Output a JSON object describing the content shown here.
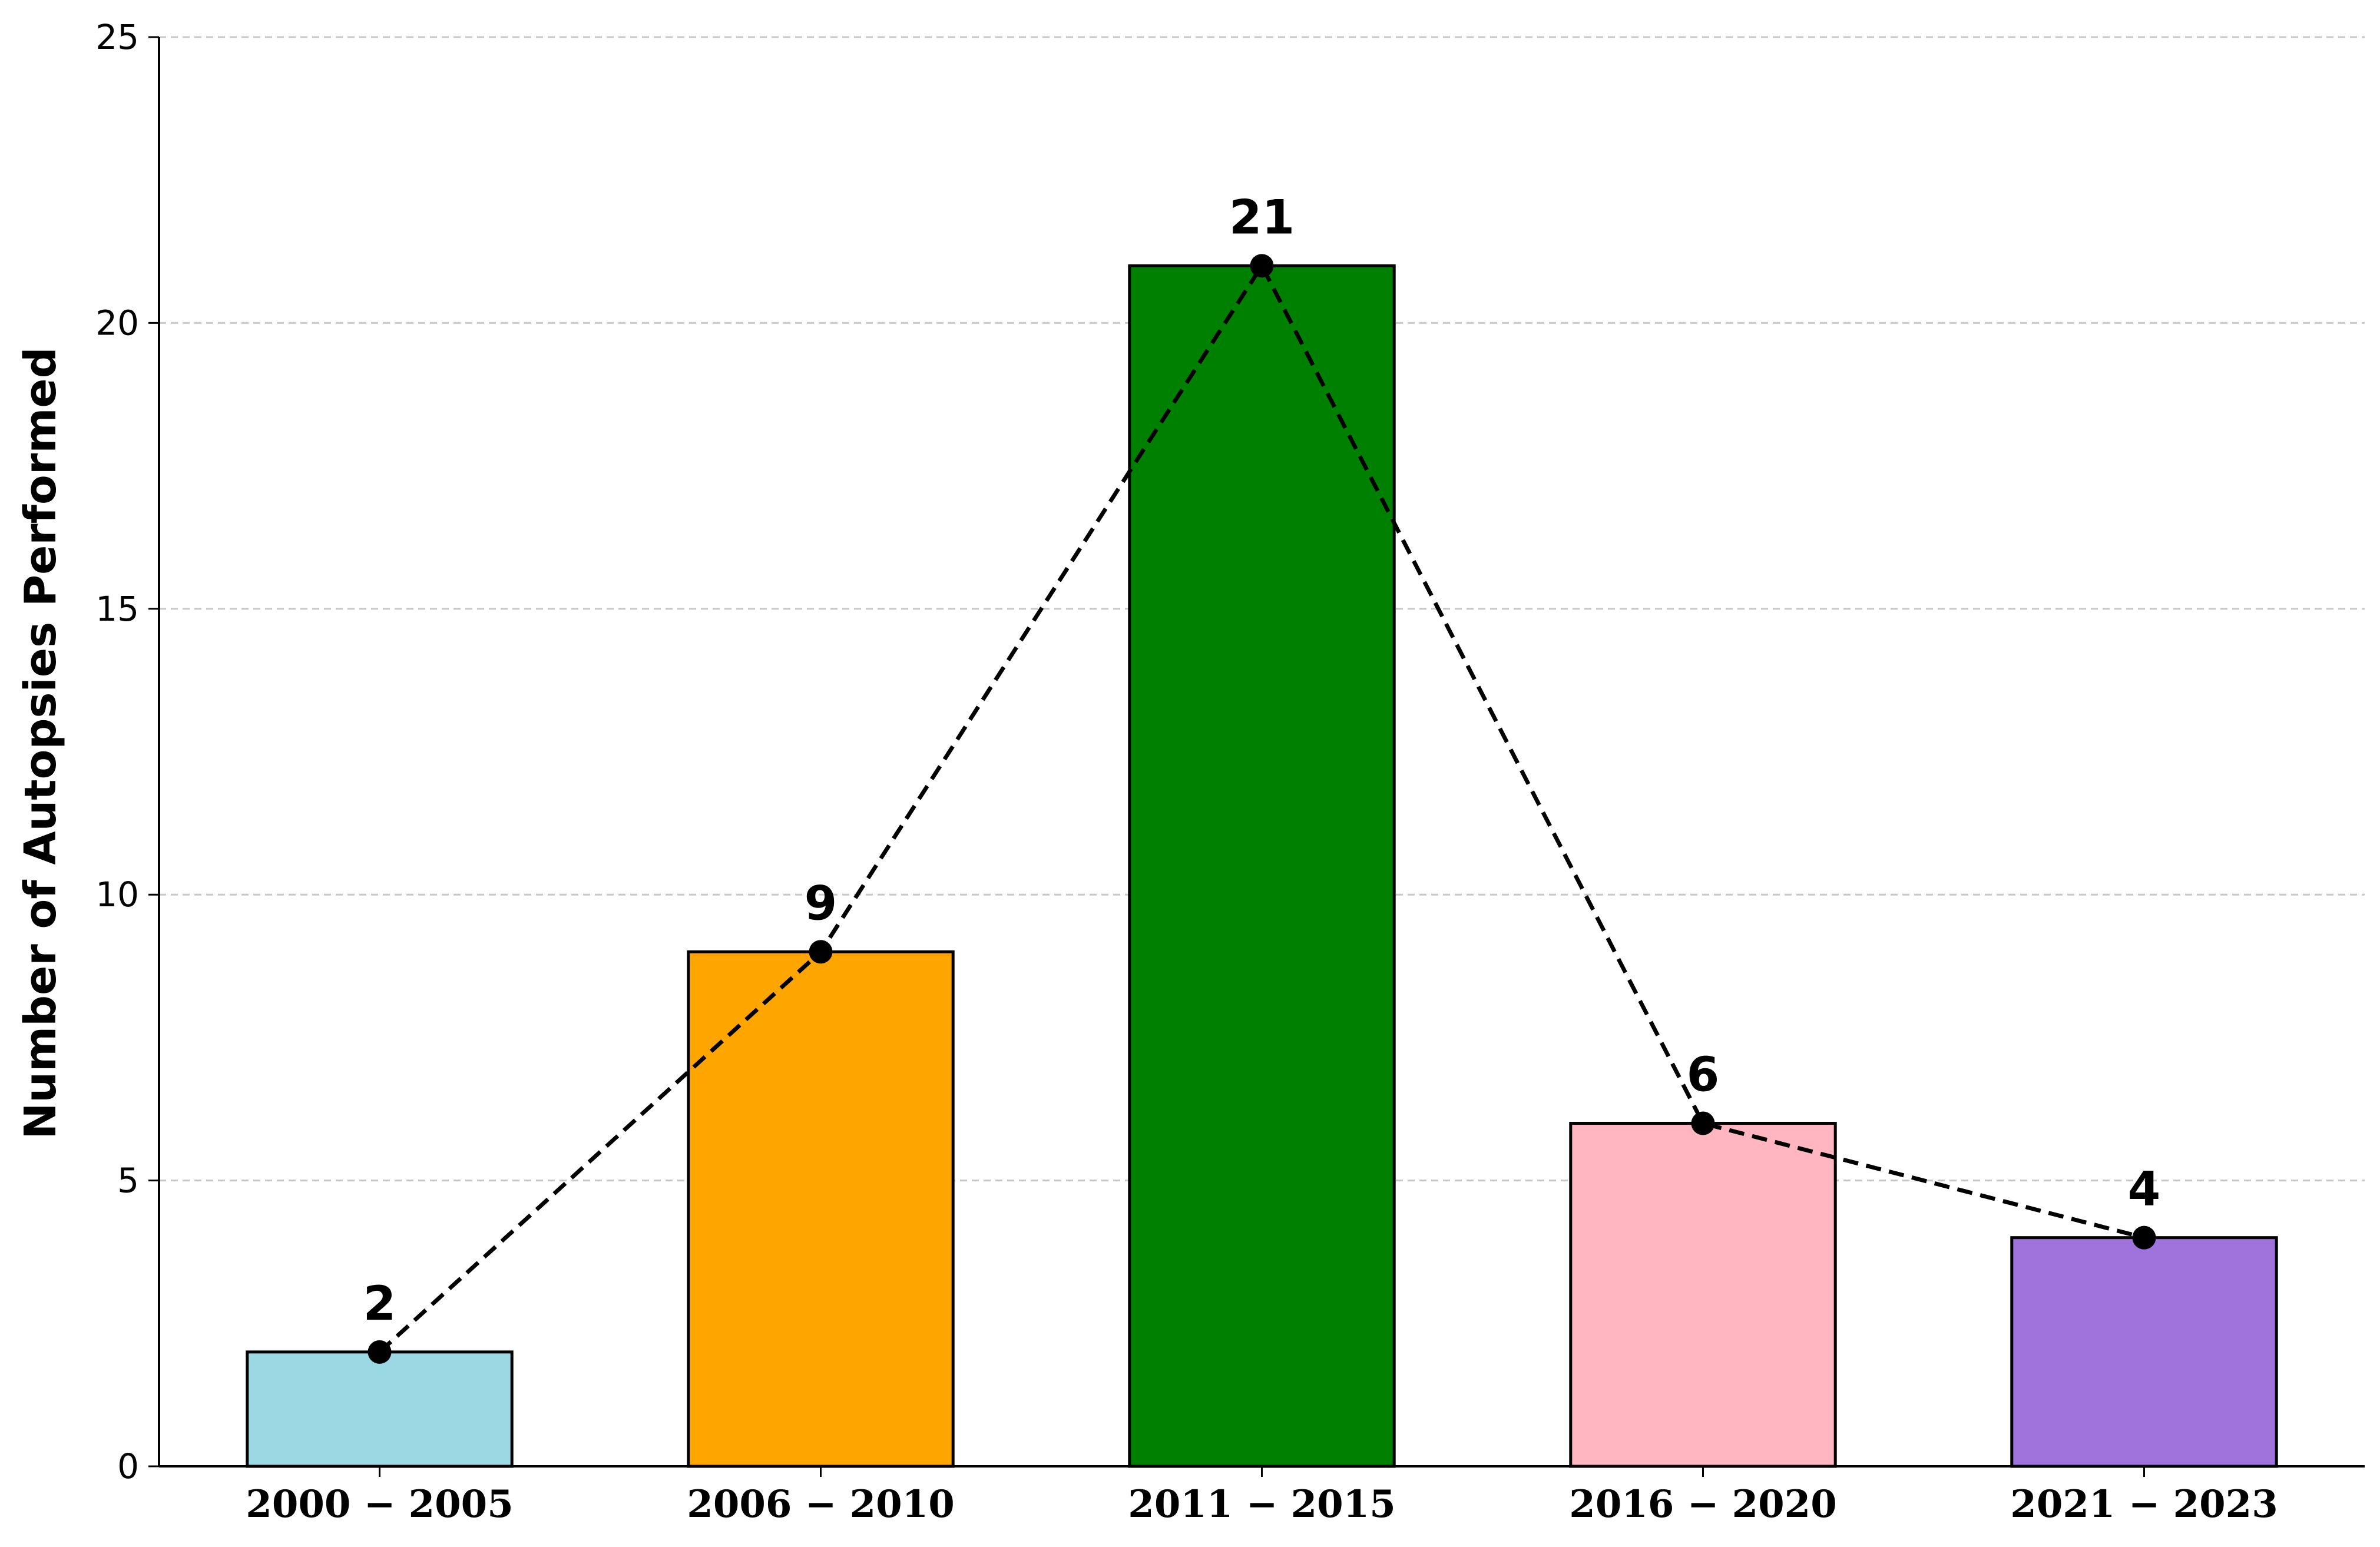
{
  "chart_data": {
    "type": "bar",
    "categories": [
      "2000 − 2005",
      "2006 − 2010",
      "2011 − 2015",
      "2016 − 2020",
      "2021 − 2023"
    ],
    "values": [
      2,
      9,
      21,
      6,
      4
    ],
    "data_labels": [
      "2",
      "9",
      "21",
      "6",
      "4"
    ],
    "bar_colors": [
      "#9ad9e4",
      "#ffa500",
      "#008000",
      "#ffb6c1",
      "#9f73dc"
    ],
    "overlay_line": {
      "style": "dashed",
      "marker": "circle",
      "color": "#000000",
      "values": [
        2,
        9,
        21,
        6,
        4
      ]
    },
    "title": "",
    "xlabel": "",
    "ylabel": "Number of Autopsies Performed",
    "ylim": [
      0,
      25
    ],
    "yticks": [
      "0",
      "5",
      "10",
      "15",
      "20",
      "25"
    ],
    "grid": "horizontal-dashed",
    "legend": "none"
  }
}
